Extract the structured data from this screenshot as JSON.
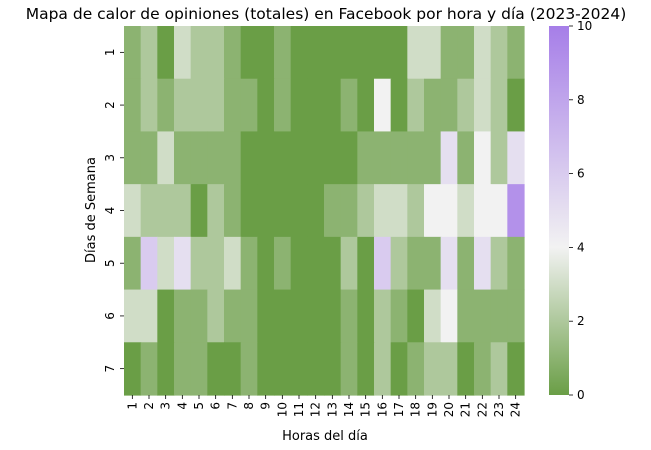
{
  "chart_data": {
    "type": "heatmap",
    "title": "Mapa de calor de opiniones (totales) en Facebook por hora y día (2023-2024)",
    "xlabel": "Horas del día",
    "ylabel": "Días de Semana",
    "x_categories": [
      "1",
      "2",
      "3",
      "4",
      "5",
      "6",
      "7",
      "8",
      "9",
      "10",
      "11",
      "12",
      "13",
      "14",
      "15",
      "16",
      "17",
      "18",
      "19",
      "20",
      "21",
      "22",
      "23",
      "24"
    ],
    "y_categories": [
      "1",
      "2",
      "3",
      "4",
      "5",
      "6",
      "7"
    ],
    "values": [
      [
        1,
        2,
        0,
        3,
        2,
        2,
        1,
        0,
        0,
        1,
        0,
        0,
        0,
        0,
        0,
        0,
        0,
        3,
        3,
        1,
        1,
        3,
        2,
        1
      ],
      [
        1,
        2,
        1,
        2,
        2,
        2,
        1,
        1,
        0,
        1,
        0,
        0,
        0,
        1,
        0,
        4,
        0,
        2,
        1,
        1,
        2,
        3,
        2,
        0
      ],
      [
        1,
        1,
        3,
        1,
        1,
        1,
        1,
        0,
        0,
        0,
        0,
        0,
        0,
        0,
        1,
        1,
        1,
        1,
        1,
        5,
        1,
        4,
        2,
        5
      ],
      [
        3,
        2,
        2,
        2,
        0,
        2,
        1,
        0,
        0,
        0,
        0,
        0,
        1,
        1,
        2,
        3,
        3,
        2,
        4,
        4,
        3,
        4,
        4,
        9
      ],
      [
        1,
        6,
        3,
        5,
        2,
        2,
        3,
        1,
        0,
        1,
        0,
        0,
        0,
        2,
        0,
        6,
        2,
        1,
        1,
        5,
        1,
        5,
        2,
        1
      ],
      [
        3,
        3,
        0,
        1,
        1,
        2,
        1,
        1,
        0,
        0,
        0,
        0,
        0,
        1,
        0,
        2,
        1,
        0,
        3,
        4,
        1,
        1,
        1,
        1
      ],
      [
        0,
        1,
        0,
        1,
        1,
        0,
        0,
        1,
        0,
        0,
        0,
        0,
        0,
        1,
        0,
        2,
        0,
        1,
        2,
        2,
        0,
        1,
        2,
        0
      ]
    ],
    "colorbar": {
      "min": 0,
      "max": 10,
      "ticks": [
        0,
        2,
        4,
        6,
        8,
        10
      ]
    },
    "colors": {
      "low": "#6a9e46",
      "mid": "#f2f2f2",
      "high": "#a67ee8"
    }
  }
}
